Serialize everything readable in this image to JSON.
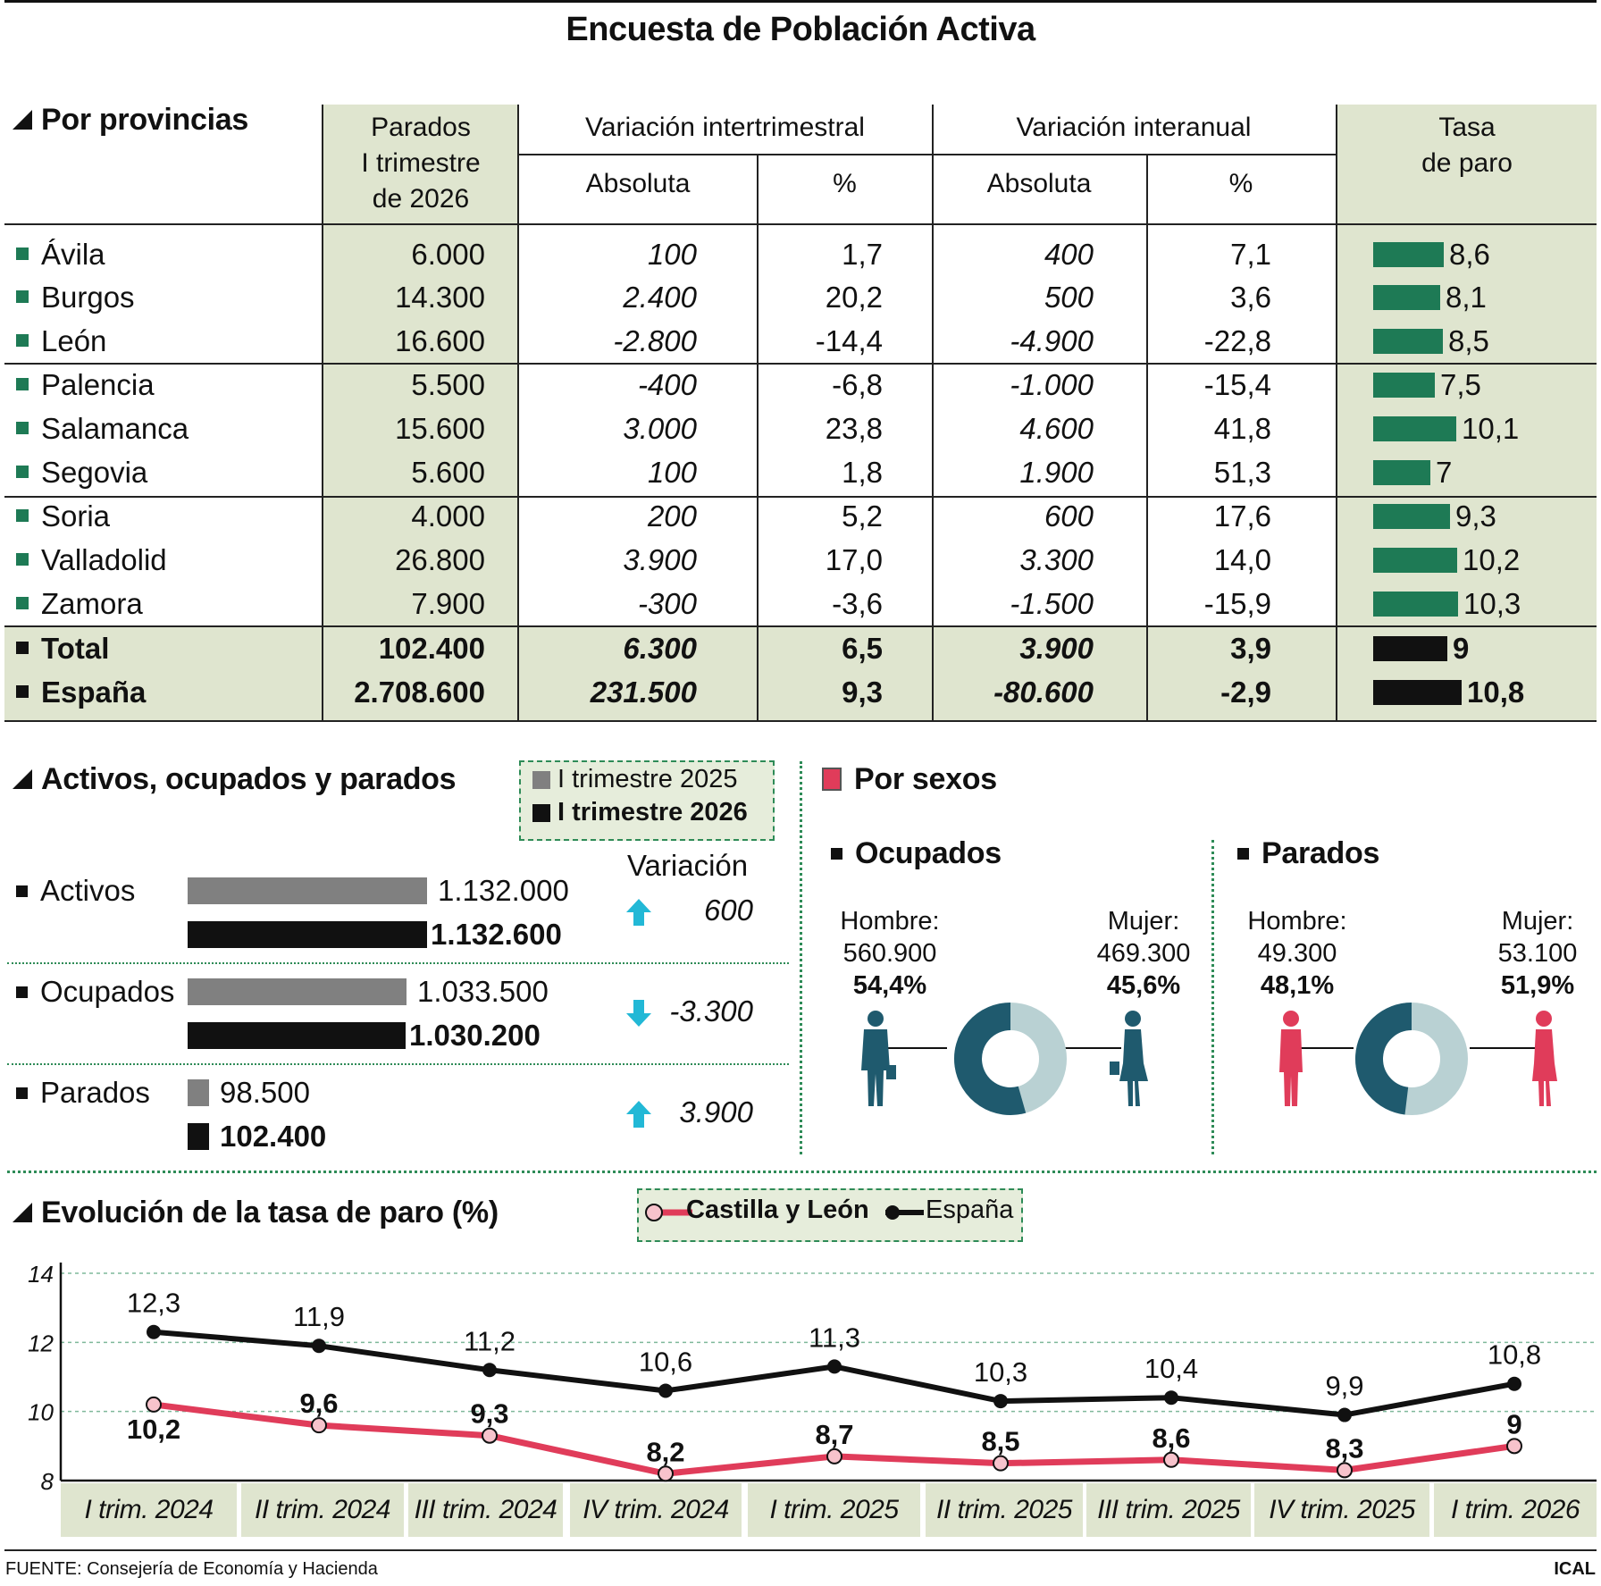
{
  "title": "Encuesta de Población Activa",
  "provincias": {
    "section_title": "Por provincias",
    "headers": {
      "parados": [
        "Parados",
        "I trimestre",
        "de 2026"
      ],
      "intertrimestral": "Variación intertrimestral",
      "interanual": "Variación interanual",
      "absoluta": "Absoluta",
      "pct": "%",
      "tasa": [
        "Tasa",
        "de paro"
      ]
    },
    "rows": [
      {
        "name": "Ávila",
        "parados": "6.000",
        "it_abs": "100",
        "it_pct": "1,7",
        "ia_abs": "400",
        "ia_pct": "7,1",
        "tasa": "8,6",
        "tasa_value": 8.6
      },
      {
        "name": "Burgos",
        "parados": "14.300",
        "it_abs": "2.400",
        "it_pct": "20,2",
        "ia_abs": "500",
        "ia_pct": "3,6",
        "tasa": "8,1",
        "tasa_value": 8.1
      },
      {
        "name": "León",
        "parados": "16.600",
        "it_abs": "-2.800",
        "it_pct": "-14,4",
        "ia_abs": "-4.900",
        "ia_pct": "-22,8",
        "tasa": "8,5",
        "tasa_value": 8.5
      },
      {
        "name": "Palencia",
        "parados": "5.500",
        "it_abs": "-400",
        "it_pct": "-6,8",
        "ia_abs": "-1.000",
        "ia_pct": "-15,4",
        "tasa": "7,5",
        "tasa_value": 7.5
      },
      {
        "name": "Salamanca",
        "parados": "15.600",
        "it_abs": "3.000",
        "it_pct": "23,8",
        "ia_abs": "4.600",
        "ia_pct": "41,8",
        "tasa": "10,1",
        "tasa_value": 10.1
      },
      {
        "name": "Segovia",
        "parados": "5.600",
        "it_abs": "100",
        "it_pct": "1,8",
        "ia_abs": "1.900",
        "ia_pct": "51,3",
        "tasa": "7",
        "tasa_value": 7
      },
      {
        "name": "Soria",
        "parados": "4.000",
        "it_abs": "200",
        "it_pct": "5,2",
        "ia_abs": "600",
        "ia_pct": "17,6",
        "tasa": "9,3",
        "tasa_value": 9.3
      },
      {
        "name": "Valladolid",
        "parados": "26.800",
        "it_abs": "3.900",
        "it_pct": "17,0",
        "ia_abs": "3.300",
        "ia_pct": "14,0",
        "tasa": "10,2",
        "tasa_value": 10.2
      },
      {
        "name": "Zamora",
        "parados": "7.900",
        "it_abs": "-300",
        "it_pct": "-3,6",
        "ia_abs": "-1.500",
        "ia_pct": "-15,9",
        "tasa": "10,3",
        "tasa_value": 10.3
      }
    ],
    "totals": [
      {
        "name": "Total",
        "parados": "102.400",
        "it_abs": "6.300",
        "it_pct": "6,5",
        "ia_abs": "3.900",
        "ia_pct": "3,9",
        "tasa": "9",
        "tasa_value": 9
      },
      {
        "name": "España",
        "parados": "2.708.600",
        "it_abs": "231.500",
        "it_pct": "9,3",
        "ia_abs": "-80.600",
        "ia_pct": "-2,9",
        "tasa": "10,8",
        "tasa_value": 10.8
      }
    ]
  },
  "activos": {
    "section_title": "Activos, ocupados y parados",
    "legend": [
      "I trimestre 2025",
      "I trimestre 2026"
    ],
    "variacion_label": "Variación",
    "rows": [
      {
        "label": "Activos",
        "v2025": "1.132.000",
        "v2026": "1.132.600",
        "n2025": 1132000,
        "n2026": 1132600,
        "variacion": "600",
        "direction": "up"
      },
      {
        "label": "Ocupados",
        "v2025": "1.033.500",
        "v2026": "1.030.200",
        "n2025": 1033500,
        "n2026": 1030200,
        "variacion": "-3.300",
        "direction": "down"
      },
      {
        "label": "Parados",
        "v2025": "98.500",
        "v2026": "102.400",
        "n2025": 98500,
        "n2026": 102400,
        "variacion": "3.900",
        "direction": "up"
      }
    ]
  },
  "sexos": {
    "section_title": "Por sexos",
    "ocupados": {
      "title": "Ocupados",
      "hombre": {
        "label": "Hombre:",
        "value": "560.900",
        "pct": "54,4%",
        "share": 54.4
      },
      "mujer": {
        "label": "Mujer:",
        "value": "469.300",
        "pct": "45,6%",
        "share": 45.6
      }
    },
    "parados": {
      "title": "Parados",
      "hombre": {
        "label": "Hombre:",
        "value": "49.300",
        "pct": "48,1%",
        "share": 48.1
      },
      "mujer": {
        "label": "Mujer:",
        "value": "53.100",
        "pct": "51,9%",
        "share": 51.9
      }
    }
  },
  "evolucion": {
    "section_title": "Evolución de la tasa de paro (%)",
    "legend": [
      "Castilla y León",
      "España"
    ]
  },
  "chart_data": {
    "type": "line",
    "title": "Evolución de la tasa de paro (%)",
    "categories": [
      "I trim. 2024",
      "II trim. 2024",
      "III trim. 2024",
      "IV trim. 2024",
      "I trim. 2025",
      "II trim. 2025",
      "III trim. 2025",
      "IV trim. 2025",
      "I trim. 2026"
    ],
    "series": [
      {
        "name": "Castilla y León",
        "values": [
          10.2,
          9.6,
          9.3,
          8.2,
          8.7,
          8.5,
          8.6,
          8.3,
          9
        ],
        "labels": [
          "10,2",
          "9,6",
          "9,3",
          "8,2",
          "8,7",
          "8,5",
          "8,6",
          "8,3",
          "9"
        ]
      },
      {
        "name": "España",
        "values": [
          12.3,
          11.9,
          11.2,
          10.6,
          11.3,
          10.3,
          10.4,
          9.9,
          10.8
        ],
        "labels": [
          "12,3",
          "11,9",
          "11,2",
          "10,6",
          "11,3",
          "10,3",
          "10,4",
          "9,9",
          "10,8"
        ]
      }
    ],
    "yticks": [
      "14",
      "12",
      "10",
      "8"
    ],
    "ylim": [
      8,
      14
    ],
    "grid": true,
    "legend_position": "top"
  },
  "colors": {
    "castilla": "#e03c5a",
    "espana": "#111111",
    "green": "#1e7a55",
    "teal": "#1f5a6e",
    "light_teal": "#b9d1d3",
    "cyan": "#22b8d6",
    "shade": "#dfe5cf"
  },
  "footer": {
    "source": "FUENTE: Consejería de Economía y Hacienda",
    "agency": "ICAL"
  }
}
